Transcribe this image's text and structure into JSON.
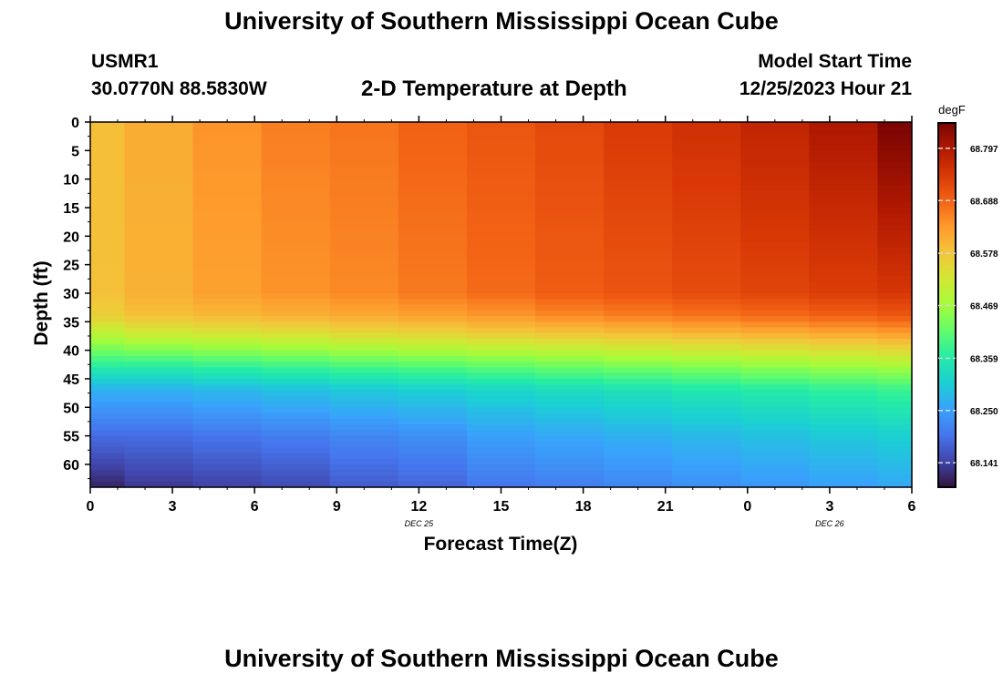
{
  "header": {
    "title": "University of Southern Mississippi Ocean Cube",
    "station_id": "USMR1",
    "coordinates": "30.0770N  88.5830W",
    "plot_title": "2-D Temperature at Depth",
    "model_start_label": "Model Start Time",
    "model_start_value": "12/25/2023 Hour 21"
  },
  "footer": {
    "title": "University of Southern Mississippi Ocean Cube"
  },
  "chart_data": {
    "type": "heatmap",
    "xlabel": "Forecast Time(Z)",
    "ylabel": "Depth (ft)",
    "x_tick_labels": [
      "0",
      "3",
      "6",
      "9",
      "12",
      "15",
      "18",
      "21",
      "0",
      "3",
      "6"
    ],
    "x_tick_hours": [
      0,
      3,
      6,
      9,
      12,
      15,
      18,
      21,
      24,
      27,
      30
    ],
    "x_date_labels": [
      {
        "label": "DEC 25",
        "hour": 12
      },
      {
        "label": "DEC 26",
        "hour": 27
      }
    ],
    "xlim_hours": [
      0,
      30
    ],
    "y_ticks": [
      0,
      5,
      10,
      15,
      20,
      25,
      30,
      35,
      40,
      45,
      50,
      55,
      60
    ],
    "ylim": [
      0,
      64
    ],
    "colorbar": {
      "unit": "degF",
      "tick_values": [
        68.797,
        68.688,
        68.578,
        68.469,
        68.359,
        68.25,
        68.141
      ],
      "tick_labels": [
        "68.797",
        "68.688",
        "68.578",
        "68.469",
        "68.359",
        "68.250",
        "68.141"
      ],
      "range": [
        68.09,
        68.85
      ],
      "colors": [
        "#30123b",
        "#4145ab",
        "#4675ed",
        "#39a2fc",
        "#1bcfd4",
        "#24eca6",
        "#61fc6c",
        "#a4fc3b",
        "#d1e834",
        "#f3c63a",
        "#fe9b2d",
        "#f36315",
        "#d93806",
        "#b11901",
        "#7a0402"
      ]
    },
    "time_columns_hours": [
      0,
      1.25,
      3.75,
      6.25,
      8.75,
      11.25,
      13.75,
      16.25,
      18.75,
      21.25,
      23.75,
      26.25,
      28.75,
      30
    ],
    "profile_depths": [
      0,
      30,
      34,
      37,
      40,
      43,
      47,
      55,
      64
    ],
    "column_profiles": [
      [
        68.588,
        68.585,
        68.565,
        68.5,
        68.43,
        68.36,
        68.27,
        68.19,
        68.11
      ],
      [
        68.61,
        68.605,
        68.585,
        68.52,
        68.44,
        68.36,
        68.27,
        68.19,
        68.13
      ],
      [
        68.64,
        68.625,
        68.595,
        68.53,
        68.45,
        68.37,
        68.28,
        68.2,
        68.14
      ],
      [
        68.66,
        68.64,
        68.605,
        68.54,
        68.46,
        68.38,
        68.29,
        68.21,
        68.15
      ],
      [
        68.67,
        68.65,
        68.615,
        68.55,
        68.47,
        68.39,
        68.3,
        68.22,
        68.17
      ],
      [
        68.69,
        68.665,
        68.625,
        68.56,
        68.48,
        68.4,
        68.31,
        68.23,
        68.18
      ],
      [
        68.705,
        68.68,
        68.635,
        68.57,
        68.49,
        68.41,
        68.32,
        68.25,
        68.2
      ],
      [
        68.72,
        68.695,
        68.65,
        68.58,
        68.5,
        68.42,
        68.33,
        68.26,
        68.21
      ],
      [
        68.74,
        68.705,
        68.66,
        68.59,
        68.51,
        68.43,
        68.34,
        68.27,
        68.22
      ],
      [
        68.755,
        68.715,
        68.67,
        68.6,
        68.52,
        68.44,
        68.35,
        68.28,
        68.23
      ],
      [
        68.775,
        68.725,
        68.68,
        68.61,
        68.53,
        68.45,
        68.36,
        68.29,
        68.24
      ],
      [
        68.8,
        68.735,
        68.69,
        68.62,
        68.54,
        68.46,
        68.37,
        68.3,
        68.25
      ],
      [
        68.85,
        68.745,
        68.7,
        68.63,
        68.55,
        68.47,
        68.38,
        68.31,
        68.26
      ]
    ]
  }
}
